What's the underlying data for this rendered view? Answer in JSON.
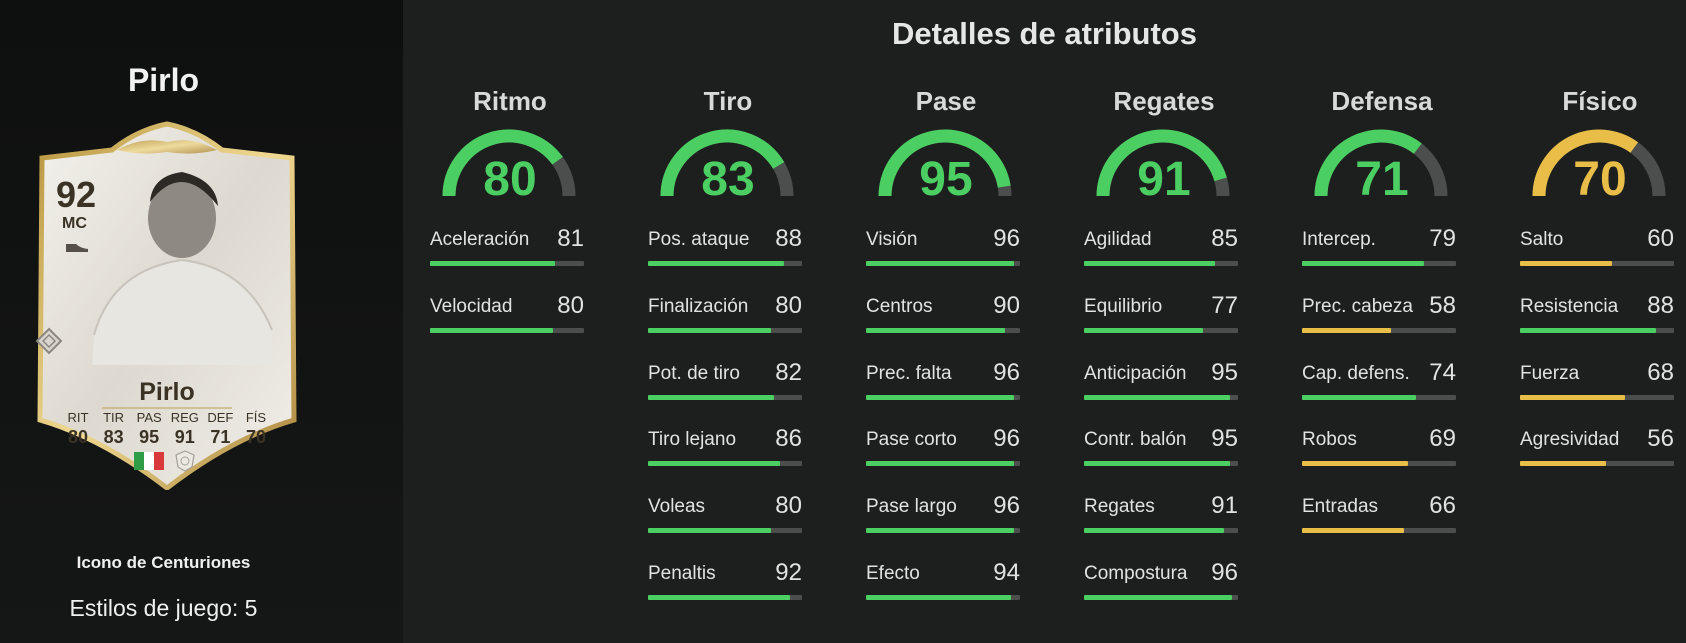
{
  "player": {
    "name": "Pirlo",
    "card_subtitle": "Icono de Centuriones",
    "playstyles_label": "Estilos de juego: 5",
    "card": {
      "rating": "92",
      "position": "MC",
      "name": "Pirlo",
      "stat_labels": [
        "RIT",
        "TIR",
        "PAS",
        "REG",
        "DEF",
        "FÍS"
      ],
      "stat_values": [
        "80",
        "83",
        "95",
        "91",
        "71",
        "70"
      ],
      "flag": "italy-flag",
      "badge": "icon-badge"
    }
  },
  "title": "Detalles de atributos",
  "colors": {
    "green": "#4ccf62",
    "yellow": "#e8bd48",
    "track": "#4b4e4c"
  },
  "categories": [
    {
      "name": "Ritmo",
      "value": "80",
      "color": "green",
      "attributes": [
        {
          "name": "Aceleración",
          "value": "81",
          "color": "green"
        },
        {
          "name": "Velocidad",
          "value": "80",
          "color": "green"
        }
      ]
    },
    {
      "name": "Tiro",
      "value": "83",
      "color": "green",
      "attributes": [
        {
          "name": "Pos. ataque",
          "value": "88",
          "color": "green"
        },
        {
          "name": "Finalización",
          "value": "80",
          "color": "green"
        },
        {
          "name": "Pot. de tiro",
          "value": "82",
          "color": "green"
        },
        {
          "name": "Tiro lejano",
          "value": "86",
          "color": "green"
        },
        {
          "name": "Voleas",
          "value": "80",
          "color": "green"
        },
        {
          "name": "Penaltis",
          "value": "92",
          "color": "green"
        }
      ]
    },
    {
      "name": "Pase",
      "value": "95",
      "color": "green",
      "attributes": [
        {
          "name": "Visión",
          "value": "96",
          "color": "green"
        },
        {
          "name": "Centros",
          "value": "90",
          "color": "green"
        },
        {
          "name": "Prec. falta",
          "value": "96",
          "color": "green"
        },
        {
          "name": "Pase corto",
          "value": "96",
          "color": "green"
        },
        {
          "name": "Pase largo",
          "value": "96",
          "color": "green"
        },
        {
          "name": "Efecto",
          "value": "94",
          "color": "green"
        }
      ]
    },
    {
      "name": "Regates",
      "value": "91",
      "color": "green",
      "attributes": [
        {
          "name": "Agilidad",
          "value": "85",
          "color": "green"
        },
        {
          "name": "Equilibrio",
          "value": "77",
          "color": "green"
        },
        {
          "name": "Anticipación",
          "value": "95",
          "color": "green"
        },
        {
          "name": "Contr. balón",
          "value": "95",
          "color": "green"
        },
        {
          "name": "Regates",
          "value": "91",
          "color": "green"
        },
        {
          "name": "Compostura",
          "value": "96",
          "color": "green"
        }
      ]
    },
    {
      "name": "Defensa",
      "value": "71",
      "color": "green",
      "attributes": [
        {
          "name": "Intercep.",
          "value": "79",
          "color": "green"
        },
        {
          "name": "Prec. cabeza",
          "value": "58",
          "color": "yellow"
        },
        {
          "name": "Cap. defens.",
          "value": "74",
          "color": "green"
        },
        {
          "name": "Robos",
          "value": "69",
          "color": "yellow"
        },
        {
          "name": "Entradas",
          "value": "66",
          "color": "yellow"
        }
      ]
    },
    {
      "name": "Físico",
      "value": "70",
      "color": "yellow",
      "attributes": [
        {
          "name": "Salto",
          "value": "60",
          "color": "yellow"
        },
        {
          "name": "Resistencia",
          "value": "88",
          "color": "green"
        },
        {
          "name": "Fuerza",
          "value": "68",
          "color": "yellow"
        },
        {
          "name": "Agresividad",
          "value": "56",
          "color": "yellow"
        }
      ]
    }
  ]
}
